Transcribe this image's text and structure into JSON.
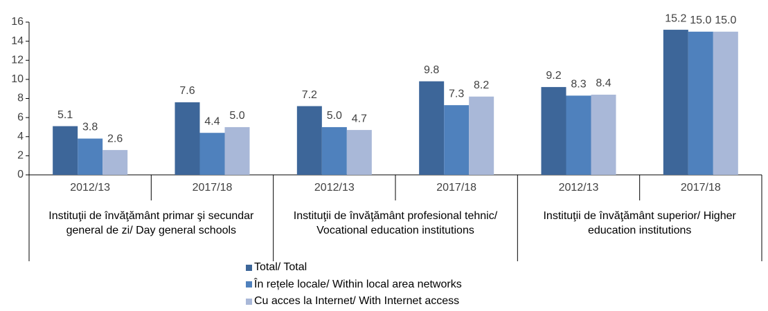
{
  "chart_data": {
    "type": "bar",
    "categories": [
      "2012/13",
      "2017/18",
      "2012/13",
      "2017/18",
      "2012/13",
      "2017/18"
    ],
    "groups": [
      "Instituţii de învăţământ primar şi secundar general de zi/ Day general schools",
      "Instituţii de învăţământ profesional tehnic/ Vocational education institutions",
      "Instituţii de învăţământ superior/ Higher education institutions"
    ],
    "series": [
      {
        "name": "Total/ Total",
        "color": "#3d6699",
        "values": [
          5.1,
          7.6,
          7.2,
          9.8,
          9.2,
          15.2
        ],
        "value_labels": [
          "5.1",
          "7.6",
          "7.2",
          "9.8",
          "9.2",
          "15.2"
        ]
      },
      {
        "name": "În rețele locale/ Within local area networks",
        "color": "#4f81bd",
        "values": [
          3.8,
          4.4,
          5.0,
          7.3,
          8.3,
          15.0
        ],
        "value_labels": [
          "3.8",
          "4.4",
          "5.0",
          "7.3",
          "8.3",
          "15.0"
        ]
      },
      {
        "name": "Cu acces la Internet/ With Internet access",
        "color": "#a9b8d8",
        "values": [
          2.6,
          5.0,
          4.7,
          8.2,
          8.4,
          15.0
        ],
        "value_labels": [
          "2.6",
          "5.0",
          "4.7",
          "8.2",
          "8.4",
          "15.0"
        ]
      }
    ],
    "ylim": [
      0,
      16
    ],
    "yticks": [
      0,
      2,
      4,
      6,
      8,
      10,
      12,
      14,
      16
    ],
    "grid": false
  }
}
